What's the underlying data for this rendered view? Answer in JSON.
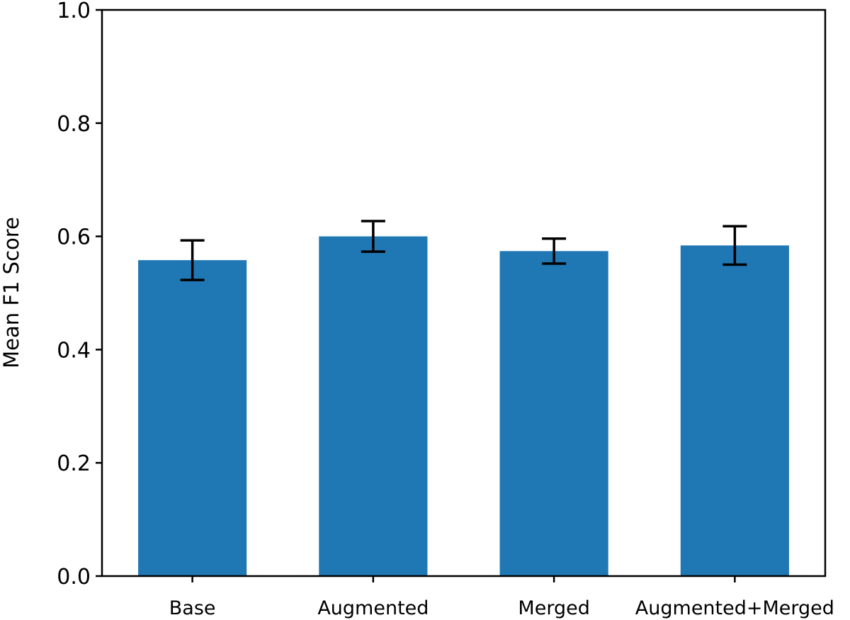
{
  "chart_data": {
    "type": "bar",
    "categories": [
      "Base",
      "Augmented",
      "Merged",
      "Augmented+Merged"
    ],
    "values": [
      0.558,
      0.6,
      0.574,
      0.584
    ],
    "errors": [
      0.035,
      0.027,
      0.022,
      0.034
    ],
    "title": "",
    "xlabel": "",
    "ylabel": "Mean F1 Score",
    "ylim": [
      0.0,
      1.0
    ],
    "yticks": [
      "0.0",
      "0.2",
      "0.4",
      "0.6",
      "0.8",
      "1.0"
    ],
    "grid": false,
    "bar_color": "#1f77b4",
    "error_color": "#000000"
  }
}
